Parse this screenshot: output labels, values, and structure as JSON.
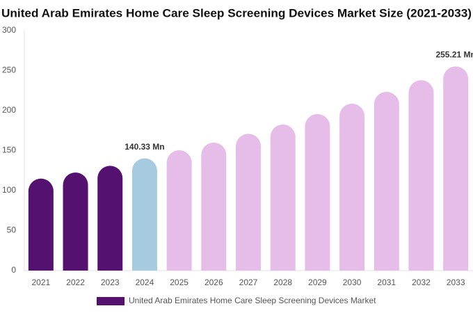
{
  "chart_data": {
    "type": "bar",
    "title": "United Arab Emirates Home Care Sleep Screening Devices Market Size (2021-2033)",
    "categories": [
      "2021",
      "2022",
      "2023",
      "2024",
      "2025",
      "2026",
      "2027",
      "2028",
      "2029",
      "2030",
      "2031",
      "2032",
      "2033"
    ],
    "series": [
      {
        "name": "United Arab Emirates Home Care Sleep Screening Devices Market",
        "color": "#541170",
        "colors": [
          "#541170",
          "#541170",
          "#541170",
          "#a6cbe0",
          "#e6bde8",
          "#e6bde8",
          "#e6bde8",
          "#e6bde8",
          "#e6bde8",
          "#e6bde8",
          "#e6bde8",
          "#e6bde8",
          "#e6bde8"
        ],
        "values": [
          115,
          122.6,
          131,
          140.33,
          150.4,
          160,
          171,
          182.6,
          195.7,
          208.7,
          223.5,
          238,
          255.21
        ],
        "value_labels": [
          null,
          null,
          null,
          "140.33 Mn",
          null,
          null,
          null,
          null,
          null,
          null,
          null,
          null,
          "255.21 Mn"
        ]
      }
    ],
    "ylim": [
      0,
      300
    ],
    "yticks": [
      0,
      50,
      100,
      150,
      200,
      250,
      300
    ],
    "grid": false,
    "legend": "bottom"
  }
}
